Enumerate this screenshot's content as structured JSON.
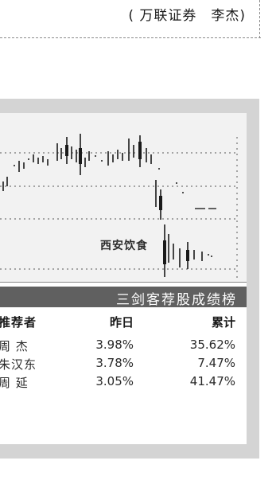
{
  "byline": "( 万联证券　李杰)",
  "chart": {
    "label": "西安饮食"
  },
  "ranking": {
    "title": "三剑客荐股成绩榜",
    "headers": {
      "name": "推荐者",
      "day": "昨日",
      "cumulative": "累计"
    },
    "rows": [
      {
        "name": "周 杰",
        "day": "3.98%",
        "cumulative": "35.62%"
      },
      {
        "name": "朱汉东",
        "day": "3.78%",
        "cumulative": "7.47%"
      },
      {
        "name": "周 延",
        "day": "3.05%",
        "cumulative": "41.47%"
      }
    ]
  },
  "colors": {
    "panel_bg": "#d4d4d4",
    "title_bar": "#606060"
  }
}
